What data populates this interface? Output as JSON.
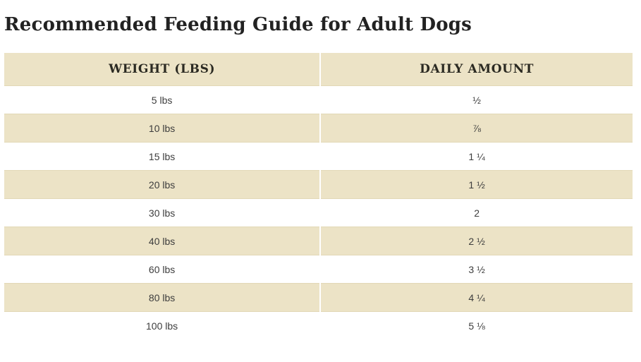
{
  "page": {
    "title": "Recommended Feeding Guide for Adult Dogs"
  },
  "table": {
    "columns": {
      "weight": "WEIGHT (LBS)",
      "amount": "DAILY AMOUNT"
    },
    "rows": [
      {
        "weight": "5 lbs",
        "amount": "½"
      },
      {
        "weight": "10 lbs",
        "amount": "⅞"
      },
      {
        "weight": "15 lbs",
        "amount": "1 ¼"
      },
      {
        "weight": "20 lbs",
        "amount": "1 ½"
      },
      {
        "weight": "30 lbs",
        "amount": "2"
      },
      {
        "weight": "40 lbs",
        "amount": "2 ½"
      },
      {
        "weight": "60 lbs",
        "amount": "3 ½"
      },
      {
        "weight": "80 lbs",
        "amount": "4 ¼"
      },
      {
        "weight": "100 lbs",
        "amount": "5 ⅛"
      }
    ]
  },
  "chart_data": {
    "type": "table",
    "title": "Recommended Feeding Guide for Adult Dogs",
    "columns": [
      "WEIGHT (LBS)",
      "DAILY AMOUNT"
    ],
    "rows": [
      [
        "5 lbs",
        "½"
      ],
      [
        "10 lbs",
        "⅞"
      ],
      [
        "15 lbs",
        "1 ¼"
      ],
      [
        "20 lbs",
        "1 ½"
      ],
      [
        "30 lbs",
        "2"
      ],
      [
        "40 lbs",
        "2 ½"
      ],
      [
        "60 lbs",
        "3 ½"
      ],
      [
        "80 lbs",
        "4 ¼"
      ],
      [
        "100 lbs",
        "5 ⅛"
      ]
    ],
    "layout_hints": {
      "striped": true,
      "band_color": "#ece3c6",
      "header_band": true,
      "column_alignment": [
        "center",
        "center"
      ]
    }
  },
  "colors": {
    "table_band": "#ece3c6",
    "table_band_border": "#e2d8b6",
    "title_text": "#222222",
    "header_text": "#2b2a22",
    "cell_text": "#3d3d3d",
    "background": "#ffffff",
    "column_divider": "#ffffff"
  }
}
